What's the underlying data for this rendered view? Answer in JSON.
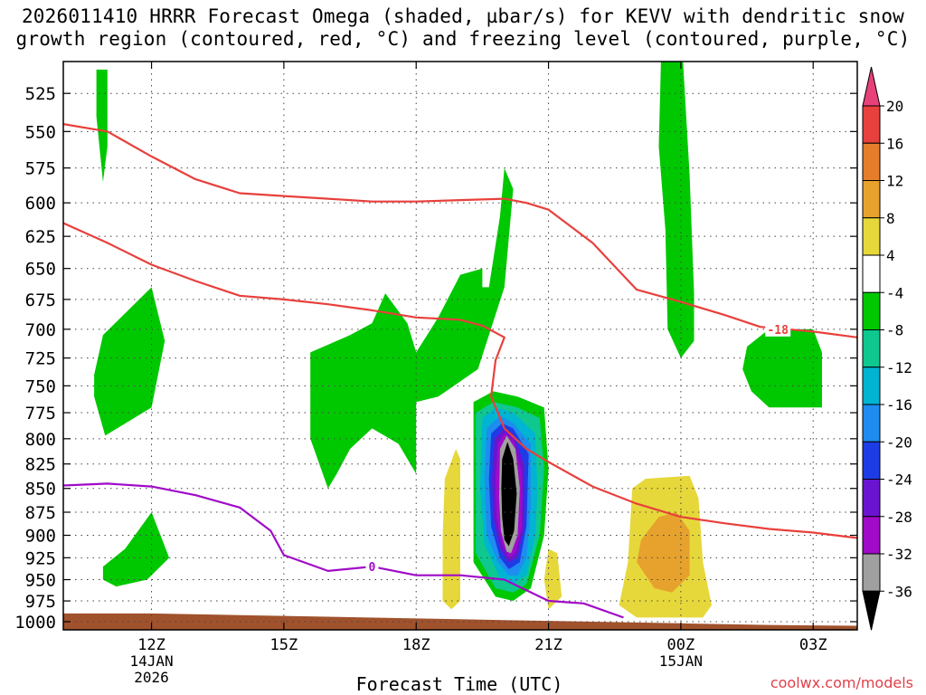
{
  "title": {
    "line1": "2026011410 HRRR Forecast Omega (shaded, µbar/s) for KEVV with dendritic snow",
    "line2": "growth region (contoured, red, °C) and freezing level (contoured, purple, °C)"
  },
  "credit": "coolwx.com/models",
  "chart_data": {
    "type": "heatmap",
    "title": "2026011410 HRRR Forecast Omega (shaded, µbar/s) for KEVV with dendritic snow growth region (contoured, red, °C) and freezing level (contoured, purple, °C)",
    "xlabel": "Forecast Time (UTC)",
    "ylabel": "",
    "x_unit": "hours since 2026-01-14 10Z",
    "xlim": [
      0,
      18
    ],
    "y_scale": "log-pressure",
    "ylim": [
      1010,
      505
    ],
    "grid": true,
    "x_ticks": [
      {
        "x": 2,
        "label": "12Z",
        "sub1": "14JAN",
        "sub2": "2026"
      },
      {
        "x": 5,
        "label": "15Z",
        "sub1": "",
        "sub2": ""
      },
      {
        "x": 8,
        "label": "18Z",
        "sub1": "",
        "sub2": ""
      },
      {
        "x": 11,
        "label": "21Z",
        "sub1": "",
        "sub2": ""
      },
      {
        "x": 14,
        "label": "00Z",
        "sub1": "15JAN",
        "sub2": ""
      },
      {
        "x": 17,
        "label": "03Z",
        "sub1": "",
        "sub2": ""
      }
    ],
    "y_ticks": [
      525,
      550,
      575,
      600,
      625,
      650,
      675,
      700,
      725,
      750,
      775,
      800,
      825,
      850,
      875,
      900,
      925,
      950,
      975,
      1000
    ],
    "colorbar": {
      "labels": [
        "20",
        "16",
        "12",
        "8",
        "4",
        "-4",
        "-8",
        "-12",
        "-16",
        "-20",
        "-24",
        "-28",
        "-32",
        "-36"
      ],
      "colors": [
        "#e8417a",
        "#e8403c",
        "#e67d2b",
        "#e6a22d",
        "#e6d83a",
        "#ffffff",
        "#00c800",
        "#0ec890",
        "#00b4d2",
        "#1e8cf0",
        "#1e3ce6",
        "#6a14d2",
        "#a00ac8",
        "#a0a0a0",
        "#000000"
      ]
    },
    "omega_regions": [
      {
        "value": -8,
        "color": "#00c800",
        "points": [
          [
            0.75,
            510
          ],
          [
            1.0,
            510
          ],
          [
            1.0,
            560
          ],
          [
            0.9,
            585
          ],
          [
            0.75,
            540
          ]
        ]
      },
      {
        "value": -8,
        "color": "#00c800",
        "points": [
          [
            0.7,
            740
          ],
          [
            0.9,
            705
          ],
          [
            2.0,
            665
          ],
          [
            2.3,
            710
          ],
          [
            2.0,
            770
          ],
          [
            0.95,
            797
          ],
          [
            0.7,
            760
          ]
        ]
      },
      {
        "value": -8,
        "color": "#00c800",
        "points": [
          [
            0.9,
            935
          ],
          [
            1.4,
            915
          ],
          [
            2.0,
            875
          ],
          [
            2.4,
            925
          ],
          [
            1.9,
            950
          ],
          [
            1.2,
            958
          ],
          [
            0.9,
            950
          ]
        ]
      },
      {
        "value": -8,
        "color": "#00c800",
        "points": [
          [
            5.6,
            720
          ],
          [
            6.5,
            705
          ],
          [
            7.0,
            695
          ],
          [
            7.3,
            670
          ],
          [
            7.8,
            695
          ],
          [
            8.0,
            720
          ],
          [
            8.5,
            690
          ],
          [
            9.0,
            655
          ],
          [
            9.5,
            650
          ],
          [
            9.5,
            665
          ],
          [
            9.65,
            665
          ],
          [
            9.9,
            610
          ],
          [
            10.0,
            575
          ],
          [
            10.2,
            590
          ],
          [
            10.0,
            665
          ],
          [
            9.4,
            735
          ],
          [
            8.5,
            760
          ],
          [
            8.0,
            765
          ],
          [
            8.0,
            835
          ],
          [
            7.6,
            805
          ],
          [
            7.0,
            790
          ],
          [
            6.5,
            810
          ],
          [
            6.2,
            835
          ],
          [
            6.0,
            850
          ],
          [
            5.6,
            800
          ]
        ]
      },
      {
        "value": -8,
        "color": "#00c800",
        "points": [
          [
            13.55,
            505
          ],
          [
            14.05,
            505
          ],
          [
            14.2,
            580
          ],
          [
            14.3,
            670
          ],
          [
            14.3,
            710
          ],
          [
            14.0,
            725
          ],
          [
            13.7,
            700
          ],
          [
            13.65,
            620
          ],
          [
            13.5,
            560
          ]
        ]
      },
      {
        "value": -8,
        "color": "#00c800",
        "points": [
          [
            15.5,
            715
          ],
          [
            16.0,
            700
          ],
          [
            17.0,
            700
          ],
          [
            17.2,
            720
          ],
          [
            17.2,
            770
          ],
          [
            16.8,
            770
          ],
          [
            16.0,
            770
          ],
          [
            15.6,
            755
          ],
          [
            15.4,
            735
          ]
        ]
      },
      {
        "value": 4,
        "color": "#e6d83a",
        "points": [
          [
            8.65,
            840
          ],
          [
            8.9,
            810
          ],
          [
            9.0,
            820
          ],
          [
            9.0,
            975
          ],
          [
            8.8,
            985
          ],
          [
            8.6,
            975
          ],
          [
            8.6,
            900
          ]
        ]
      },
      {
        "value": 4,
        "color": "#e6d83a",
        "points": [
          [
            11.0,
            915
          ],
          [
            11.2,
            920
          ],
          [
            11.3,
            970
          ],
          [
            11.0,
            985
          ],
          [
            10.9,
            950
          ]
        ]
      },
      {
        "value": 4,
        "color": "#e6d83a",
        "points": [
          [
            12.9,
            850
          ],
          [
            13.2,
            840
          ],
          [
            14.2,
            837
          ],
          [
            14.4,
            860
          ],
          [
            14.5,
            930
          ],
          [
            14.7,
            980
          ],
          [
            14.5,
            995
          ],
          [
            13.0,
            995
          ],
          [
            12.6,
            980
          ],
          [
            12.8,
            930
          ]
        ]
      },
      {
        "value": 8,
        "color": "#e6a22d",
        "points": [
          [
            13.1,
            905
          ],
          [
            13.5,
            880
          ],
          [
            13.9,
            875
          ],
          [
            14.2,
            895
          ],
          [
            14.2,
            945
          ],
          [
            13.8,
            965
          ],
          [
            13.4,
            960
          ],
          [
            13.0,
            930
          ]
        ]
      },
      {
        "value": -8,
        "color": "#00c800",
        "points": [
          [
            9.3,
            765
          ],
          [
            9.75,
            755
          ],
          [
            10.3,
            760
          ],
          [
            10.9,
            770
          ],
          [
            11.0,
            830
          ],
          [
            10.9,
            900
          ],
          [
            10.6,
            960
          ],
          [
            10.2,
            975
          ],
          [
            9.8,
            970
          ],
          [
            9.3,
            930
          ],
          [
            9.3,
            850
          ]
        ]
      },
      {
        "value": -12,
        "color": "#0ec890",
        "points": [
          [
            9.35,
            775
          ],
          [
            9.75,
            765
          ],
          [
            10.3,
            770
          ],
          [
            10.8,
            780
          ],
          [
            10.9,
            830
          ],
          [
            10.8,
            900
          ],
          [
            10.5,
            955
          ],
          [
            10.2,
            965
          ],
          [
            9.8,
            960
          ],
          [
            9.35,
            920
          ],
          [
            9.35,
            850
          ]
        ]
      },
      {
        "value": -16,
        "color": "#00b4d2",
        "points": [
          [
            9.5,
            780
          ],
          [
            9.8,
            770
          ],
          [
            10.2,
            775
          ],
          [
            10.7,
            795
          ],
          [
            10.75,
            850
          ],
          [
            10.7,
            900
          ],
          [
            10.5,
            945
          ],
          [
            10.2,
            955
          ],
          [
            9.9,
            948
          ],
          [
            9.55,
            910
          ],
          [
            9.45,
            850
          ]
        ]
      },
      {
        "value": -20,
        "color": "#1e8cf0",
        "points": [
          [
            9.6,
            790
          ],
          [
            9.9,
            778
          ],
          [
            10.2,
            785
          ],
          [
            10.6,
            805
          ],
          [
            10.6,
            870
          ],
          [
            10.5,
            925
          ],
          [
            10.3,
            945
          ],
          [
            10.1,
            945
          ],
          [
            9.85,
            930
          ],
          [
            9.6,
            900
          ],
          [
            9.55,
            840
          ]
        ]
      },
      {
        "value": -24,
        "color": "#1e3ce6",
        "points": [
          [
            9.7,
            795
          ],
          [
            9.95,
            785
          ],
          [
            10.2,
            790
          ],
          [
            10.55,
            815
          ],
          [
            10.5,
            890
          ],
          [
            10.35,
            930
          ],
          [
            10.1,
            938
          ],
          [
            9.9,
            925
          ],
          [
            9.7,
            890
          ],
          [
            9.65,
            840
          ]
        ]
      },
      {
        "value": -28,
        "color": "#6a14d2",
        "points": [
          [
            9.78,
            800
          ],
          [
            10.0,
            790
          ],
          [
            10.2,
            795
          ],
          [
            10.45,
            825
          ],
          [
            10.45,
            890
          ],
          [
            10.3,
            925
          ],
          [
            10.1,
            930
          ],
          [
            9.9,
            915
          ],
          [
            9.75,
            880
          ],
          [
            9.72,
            840
          ]
        ]
      },
      {
        "value": -32,
        "color": "#a00ac8",
        "points": [
          [
            9.85,
            805
          ],
          [
            10.0,
            795
          ],
          [
            10.2,
            800
          ],
          [
            10.4,
            835
          ],
          [
            10.4,
            890
          ],
          [
            10.25,
            920
          ],
          [
            10.1,
            925
          ],
          [
            9.95,
            910
          ],
          [
            9.82,
            880
          ],
          [
            9.8,
            840
          ]
        ]
      },
      {
        "value": -36,
        "color": "#a0a0a0",
        "points": [
          [
            9.9,
            810
          ],
          [
            10.05,
            797
          ],
          [
            10.25,
            810
          ],
          [
            10.35,
            850
          ],
          [
            10.3,
            900
          ],
          [
            10.15,
            920
          ],
          [
            10.05,
            918
          ],
          [
            9.92,
            895
          ],
          [
            9.88,
            860
          ]
        ]
      },
      {
        "value": -40,
        "color": "#000000",
        "points": [
          [
            9.95,
            820
          ],
          [
            10.07,
            803
          ],
          [
            10.2,
            820
          ],
          [
            10.28,
            855
          ],
          [
            10.22,
            895
          ],
          [
            10.1,
            912
          ],
          [
            10.0,
            905
          ],
          [
            9.95,
            880
          ],
          [
            9.93,
            850
          ]
        ]
      }
    ],
    "temperature_contours": [
      {
        "color": "#e8403c",
        "label": "",
        "points": [
          [
            0.0,
            545
          ],
          [
            1.0,
            550
          ],
          [
            2.0,
            567
          ],
          [
            3.0,
            583
          ],
          [
            4.0,
            593
          ],
          [
            5.0,
            595
          ],
          [
            6.0,
            597
          ],
          [
            7.0,
            599
          ],
          [
            8.0,
            599
          ],
          [
            9.0,
            598
          ],
          [
            10.0,
            597
          ],
          [
            10.5,
            600
          ],
          [
            11.0,
            605
          ],
          [
            12.0,
            630
          ],
          [
            13.0,
            667
          ],
          [
            14.0,
            677
          ],
          [
            15.0,
            688
          ],
          [
            15.8,
            698
          ],
          [
            17.0,
            702
          ],
          [
            18.0,
            707
          ]
        ]
      },
      {
        "value": -18,
        "color": "#e8403c",
        "label": "-18",
        "label_x": 16.2,
        "label_y": 700,
        "points": []
      },
      {
        "color": "#e8403c",
        "label": "",
        "points": [
          [
            0.0,
            615
          ],
          [
            1.0,
            630
          ],
          [
            2.0,
            647
          ],
          [
            3.0,
            660
          ],
          [
            4.0,
            672
          ],
          [
            5.0,
            675
          ],
          [
            6.0,
            679
          ],
          [
            7.0,
            684
          ],
          [
            8.0,
            690
          ],
          [
            9.0,
            692
          ],
          [
            9.5,
            697
          ],
          [
            10.0,
            707
          ],
          [
            9.8,
            727
          ],
          [
            9.7,
            760
          ],
          [
            10.0,
            790
          ],
          [
            10.5,
            810
          ],
          [
            11.0,
            823
          ],
          [
            12.0,
            848
          ],
          [
            13.0,
            866
          ],
          [
            14.0,
            880
          ],
          [
            15.0,
            887
          ],
          [
            16.0,
            893
          ],
          [
            17.0,
            897
          ],
          [
            18.0,
            903
          ]
        ]
      }
    ],
    "freezing_level": {
      "color": "#a00ac8",
      "label": "0",
      "label_x": 7.0,
      "label_y": 935,
      "points": [
        [
          0.0,
          847
        ],
        [
          1.0,
          845
        ],
        [
          2.0,
          848
        ],
        [
          3.0,
          857
        ],
        [
          4.0,
          870
        ],
        [
          4.7,
          895
        ],
        [
          5.0,
          922
        ],
        [
          6.0,
          940
        ],
        [
          7.0,
          935
        ],
        [
          8.0,
          945
        ],
        [
          9.0,
          945
        ],
        [
          10.0,
          950
        ],
        [
          11.0,
          975
        ],
        [
          11.8,
          978
        ],
        [
          12.7,
          995
        ]
      ]
    },
    "terrain": {
      "color": "#a0522d",
      "points": [
        [
          0.0,
          990
        ],
        [
          2.0,
          990
        ],
        [
          4.0,
          992
        ],
        [
          6.0,
          994
        ],
        [
          8.0,
          996
        ],
        [
          10.0,
          998
        ],
        [
          12.0,
          1000
        ],
        [
          14.0,
          1002
        ],
        [
          16.0,
          1004
        ],
        [
          18.0,
          1005
        ]
      ]
    }
  }
}
